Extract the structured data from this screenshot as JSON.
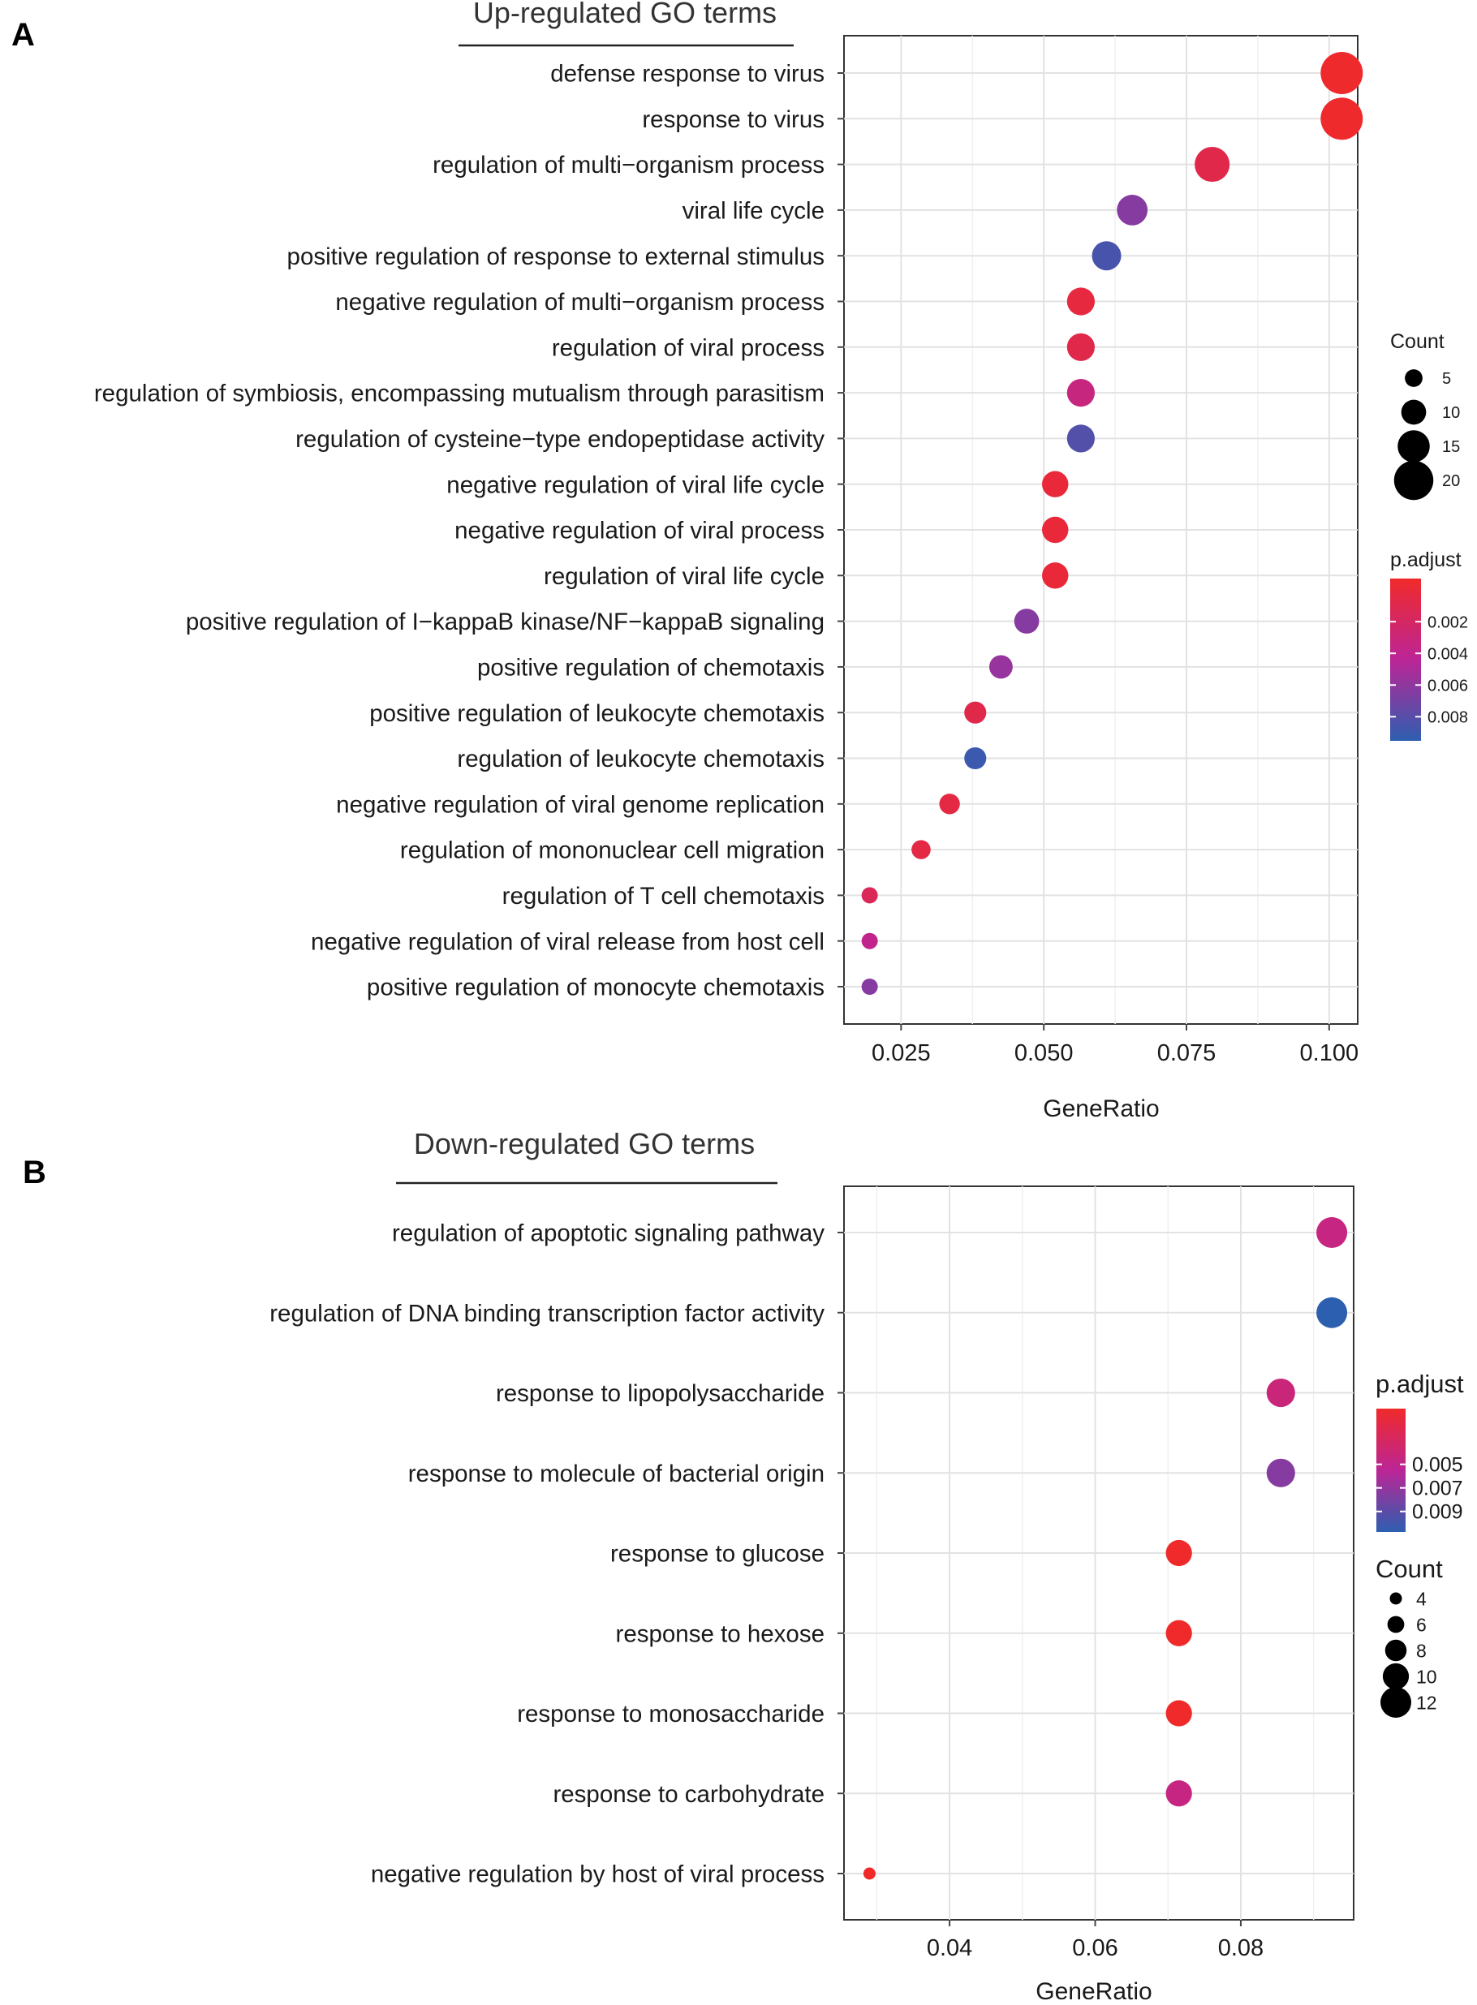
{
  "figure": {
    "panel_a_letter": "A",
    "panel_b_letter": "B"
  },
  "chart_data": [
    {
      "type": "scatter",
      "panel": "A",
      "title": "Up-regulated GO terms",
      "xlabel": "GeneRatio",
      "ylabel": "",
      "xlim": [
        0.015,
        0.105
      ],
      "xticks": [
        0.025,
        0.05,
        0.075,
        0.1
      ],
      "xtick_labels": [
        "0.025",
        "0.050",
        "0.075",
        "0.100"
      ],
      "grid": true,
      "legend_position": "right",
      "points": [
        {
          "term": "defense response to virus",
          "x": 0.1022,
          "count": 22,
          "padj": 0.0003
        },
        {
          "term": "response to virus",
          "x": 0.1022,
          "count": 22,
          "padj": 0.0003
        },
        {
          "term": "regulation of multi−organism process",
          "x": 0.0795,
          "count": 17,
          "padj": 0.0015
        },
        {
          "term": "viral life cycle",
          "x": 0.0655,
          "count": 14,
          "padj": 0.006
        },
        {
          "term": "positive regulation of response to external stimulus",
          "x": 0.061,
          "count": 13,
          "padj": 0.0078
        },
        {
          "term": "negative regulation of multi−organism process",
          "x": 0.0565,
          "count": 12,
          "padj": 0.001
        },
        {
          "term": "regulation of viral process",
          "x": 0.0565,
          "count": 12,
          "padj": 0.0015
        },
        {
          "term": "regulation of symbiosis, encompassing mutualism through parasitism",
          "x": 0.0565,
          "count": 12,
          "padj": 0.0035
        },
        {
          "term": "regulation of cysteine−type endopeptidase activity",
          "x": 0.0565,
          "count": 12,
          "padj": 0.0075
        },
        {
          "term": "negative regulation of viral life cycle",
          "x": 0.052,
          "count": 11,
          "padj": 0.0008
        },
        {
          "term": "negative regulation of viral process",
          "x": 0.052,
          "count": 11,
          "padj": 0.0008
        },
        {
          "term": "regulation of viral life cycle",
          "x": 0.052,
          "count": 11,
          "padj": 0.0008
        },
        {
          "term": "positive regulation of I−kappaB kinase/NF−kappaB signaling",
          "x": 0.047,
          "count": 10,
          "padj": 0.006
        },
        {
          "term": "positive regulation of chemotaxis",
          "x": 0.0425,
          "count": 9,
          "padj": 0.0055
        },
        {
          "term": "positive regulation of leukocyte chemotaxis",
          "x": 0.038,
          "count": 8,
          "padj": 0.0015
        },
        {
          "term": "regulation of leukocyte chemotaxis",
          "x": 0.038,
          "count": 8,
          "padj": 0.0082
        },
        {
          "term": "negative regulation of viral genome replication",
          "x": 0.0335,
          "count": 7,
          "padj": 0.0012
        },
        {
          "term": "regulation of mononuclear cell migration",
          "x": 0.0285,
          "count": 6,
          "padj": 0.0012
        },
        {
          "term": "regulation of T cell chemotaxis",
          "x": 0.0195,
          "count": 4,
          "padj": 0.002
        },
        {
          "term": "negative regulation of viral release from host cell",
          "x": 0.0195,
          "count": 4,
          "padj": 0.004
        },
        {
          "term": "positive regulation of monocyte chemotaxis",
          "x": 0.0195,
          "count": 4,
          "padj": 0.006
        }
      ],
      "size_legend": {
        "title": "Count",
        "values": [
          5,
          10,
          15,
          20
        ]
      },
      "color_legend": {
        "title": "p.adjust",
        "min": 0.0002,
        "max": 0.0086,
        "ticks": [
          0.002,
          0.004,
          0.006,
          0.008
        ],
        "tick_labels": [
          "0.002",
          "0.004",
          "0.006",
          "0.008"
        ],
        "low_color": "#f02a2a",
        "mid_color": "#bc2596",
        "high_color": "#2d5fb0"
      }
    },
    {
      "type": "scatter",
      "panel": "B",
      "title": "Down-regulated GO terms",
      "xlabel": "GeneRatio",
      "ylabel": "",
      "xlim": [
        0.0255,
        0.0955
      ],
      "xticks": [
        0.04,
        0.06,
        0.08
      ],
      "xtick_labels": [
        "0.04",
        "0.06",
        "0.08"
      ],
      "grid": true,
      "legend_position": "right",
      "points": [
        {
          "term": "regulation of apoptotic signaling pathway",
          "x": 0.0925,
          "count": 12,
          "padj": 0.0058
        },
        {
          "term": "regulation of DNA binding transcription factor activity",
          "x": 0.0925,
          "count": 12,
          "padj": 0.0095
        },
        {
          "term": "response to lipopolysaccharide",
          "x": 0.0855,
          "count": 11,
          "padj": 0.0056
        },
        {
          "term": "response to molecule of bacterial origin",
          "x": 0.0855,
          "count": 11,
          "padj": 0.0076
        },
        {
          "term": "response to glucose",
          "x": 0.0715,
          "count": 10,
          "padj": 0.0033
        },
        {
          "term": "response to hexose",
          "x": 0.0715,
          "count": 10,
          "padj": 0.0033
        },
        {
          "term": "response to monosaccharide",
          "x": 0.0715,
          "count": 10,
          "padj": 0.0033
        },
        {
          "term": "response to carbohydrate",
          "x": 0.0715,
          "count": 10,
          "padj": 0.0058
        },
        {
          "term": "negative regulation by host of viral process",
          "x": 0.029,
          "count": 4,
          "padj": 0.0033
        }
      ],
      "size_legend": {
        "title": "Count",
        "values": [
          4,
          6,
          8,
          10,
          12
        ]
      },
      "color_legend": {
        "title": "p.adjust",
        "min": 0.0033,
        "max": 0.0095,
        "ticks": [
          0.005,
          0.007,
          0.009
        ],
        "tick_labels": [
          "0.005",
          "0.007",
          "0.009"
        ],
        "low_color": "#f02a2a",
        "mid_color": "#bc2596",
        "high_color": "#2d5fb0"
      }
    }
  ]
}
